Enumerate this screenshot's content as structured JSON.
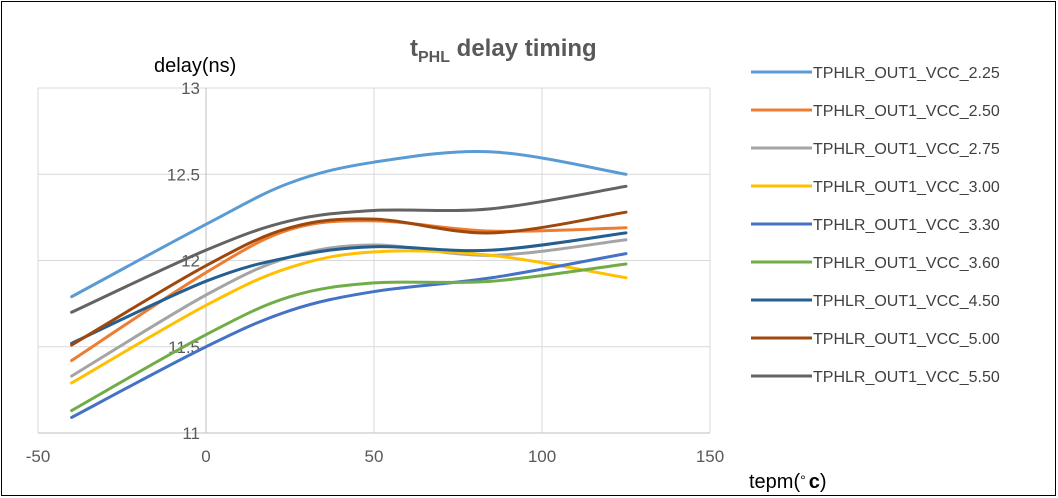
{
  "chart_data": {
    "type": "line",
    "title": {
      "main": "t",
      "sub": "PHL",
      "rest": " delay timing"
    },
    "ylabel": "delay(ns)",
    "xlabel": {
      "prefix": "tepm(",
      "deg": "°",
      "unit": "c",
      "suffix": ")"
    },
    "xlim": [
      -50,
      150
    ],
    "ylim": [
      11,
      13
    ],
    "xticks": [
      -50,
      0,
      50,
      100,
      150
    ],
    "yticks": [
      11,
      11.5,
      12,
      12.5,
      13
    ],
    "grid": true,
    "legend_position": "right",
    "x": [
      -40,
      0,
      25,
      50,
      85,
      125
    ],
    "series": [
      {
        "name": "TPHLR_OUT1_VCC_2.25",
        "color": "#5B9BD5",
        "values": [
          11.79,
          12.21,
          12.45,
          12.57,
          12.63,
          12.5
        ]
      },
      {
        "name": "TPHLR_OUT1_VCC_2.50",
        "color": "#ED7D31",
        "values": [
          11.42,
          11.93,
          12.18,
          12.23,
          12.17,
          12.19
        ]
      },
      {
        "name": "TPHLR_OUT1_VCC_2.75",
        "color": "#A5A5A5",
        "values": [
          11.33,
          11.8,
          12.02,
          12.09,
          12.03,
          12.12
        ]
      },
      {
        "name": "TPHLR_OUT1_VCC_3.00",
        "color": "#FFC000",
        "values": [
          11.29,
          11.74,
          11.96,
          12.05,
          12.03,
          11.9
        ]
      },
      {
        "name": "TPHLR_OUT1_VCC_3.30",
        "color": "#4472C4",
        "values": [
          11.09,
          11.5,
          11.71,
          11.82,
          11.9,
          12.04
        ]
      },
      {
        "name": "TPHLR_OUT1_VCC_3.60",
        "color": "#70AD47",
        "values": [
          11.13,
          11.57,
          11.79,
          11.87,
          11.88,
          11.98
        ]
      },
      {
        "name": "TPHLR_OUT1_VCC_4.50",
        "color": "#255E91",
        "values": [
          11.52,
          11.88,
          12.02,
          12.08,
          12.06,
          12.16
        ]
      },
      {
        "name": "TPHLR_OUT1_VCC_5.00",
        "color": "#9E480E",
        "values": [
          11.51,
          11.97,
          12.19,
          12.24,
          12.16,
          12.28
        ]
      },
      {
        "name": "TPHLR_OUT1_VCC_5.50",
        "color": "#636363",
        "values": [
          11.7,
          12.06,
          12.23,
          12.29,
          12.3,
          12.43
        ]
      }
    ]
  }
}
